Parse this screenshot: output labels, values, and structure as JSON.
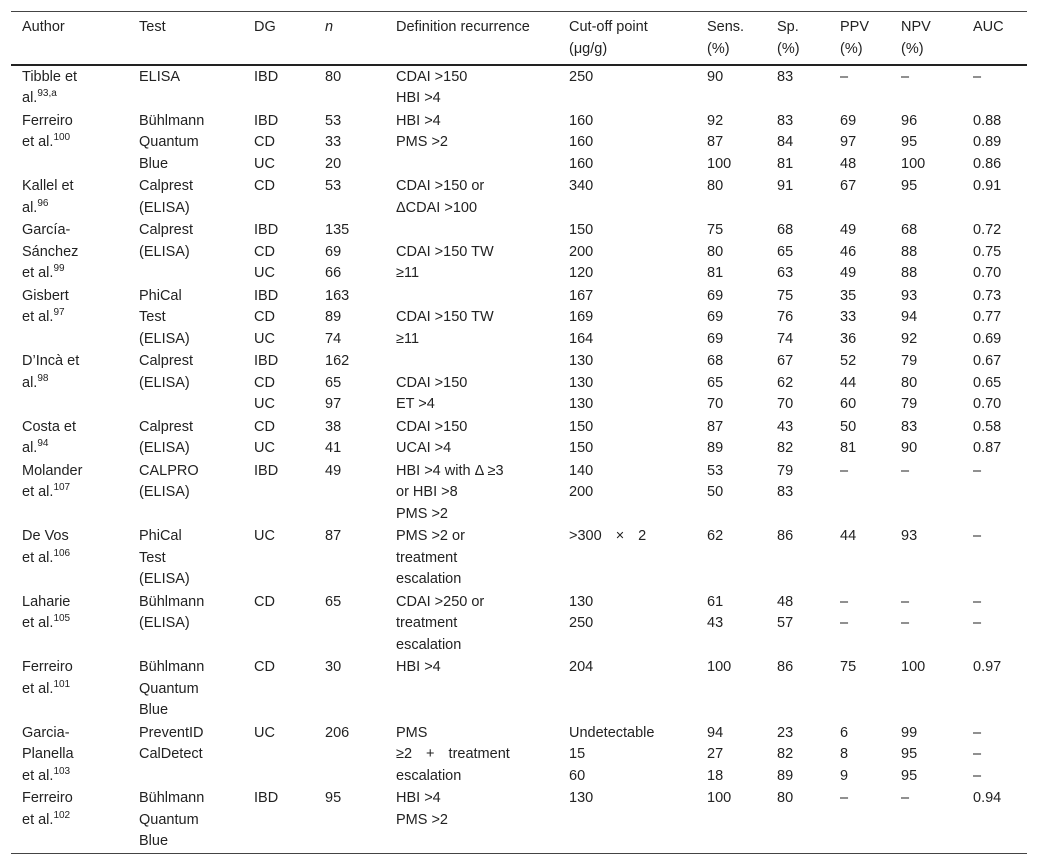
{
  "table": {
    "header": [
      [
        "Author"
      ],
      [
        "Test"
      ],
      [
        "DG"
      ],
      [
        "n"
      ],
      [
        "Definition recurrence"
      ],
      [
        "Cut-off point",
        "(μg/g)"
      ],
      [
        "Sens.",
        "(%)"
      ],
      [
        "Sp.",
        "(%)"
      ],
      [
        "PPV",
        "(%)"
      ],
      [
        "NPV",
        "(%)"
      ],
      [
        "AUC"
      ]
    ],
    "rows": [
      [
        {
          "lines": [
            "Tibble et",
            "al."
          ],
          "ref": "93,a"
        },
        [
          "ELISA"
        ],
        [
          "IBD"
        ],
        [
          "80"
        ],
        [
          "CDAI >150",
          "HBI >4"
        ],
        [
          "250"
        ],
        [
          "90"
        ],
        [
          "83"
        ],
        [
          "–"
        ],
        [
          "–"
        ],
        [
          "–"
        ]
      ],
      [
        {
          "lines": [
            "Ferreiro",
            "et al."
          ],
          "ref": "100"
        },
        [
          "Bühlmann",
          "Quantum",
          "Blue"
        ],
        [
          "IBD",
          "CD",
          "UC"
        ],
        [
          "53",
          "33",
          "20"
        ],
        [
          "HBI >4",
          "PMS >2"
        ],
        [
          "160",
          "160",
          "160"
        ],
        [
          "92",
          "87",
          "100"
        ],
        [
          "83",
          "84",
          "81"
        ],
        [
          "69",
          "97",
          "48"
        ],
        [
          "96",
          "95",
          "100"
        ],
        [
          "0.88",
          "0.89",
          "0.86"
        ]
      ],
      [
        {
          "lines": [
            "Kallel et",
            "al."
          ],
          "ref": "96"
        },
        [
          "Calprest",
          "(ELISA)"
        ],
        [
          "CD"
        ],
        [
          "53"
        ],
        [
          "CDAI >150 or",
          "ΔCDAI >100"
        ],
        [
          "340"
        ],
        [
          "80"
        ],
        [
          "91"
        ],
        [
          "67"
        ],
        [
          "95"
        ],
        [
          "0.91"
        ]
      ],
      [
        {
          "lines": [
            "García-",
            "Sánchez",
            "et al."
          ],
          "ref": "99"
        },
        [
          "Calprest",
          "(ELISA)"
        ],
        [
          "IBD",
          "CD",
          "UC"
        ],
        [
          "135",
          "69",
          "66"
        ],
        [
          null,
          "CDAI >150 TW",
          "≥11"
        ],
        [
          "150",
          "200",
          "120"
        ],
        [
          "75",
          "80",
          "81"
        ],
        [
          "68",
          "65",
          "63"
        ],
        [
          "49",
          "46",
          "49"
        ],
        [
          "68",
          "88",
          "88"
        ],
        [
          "0.72",
          "0.75",
          "0.70"
        ]
      ],
      [
        {
          "lines": [
            "Gisbert",
            "et al."
          ],
          "ref": "97"
        },
        [
          "PhiCal",
          "Test",
          "(ELISA)"
        ],
        [
          "IBD",
          "CD",
          "UC"
        ],
        [
          "163",
          "89",
          "74"
        ],
        [
          null,
          "CDAI >150 TW",
          "≥11"
        ],
        [
          "167",
          "169",
          "164"
        ],
        [
          "69",
          "69",
          "69"
        ],
        [
          "75",
          "76",
          "74"
        ],
        [
          "35",
          "33",
          "36"
        ],
        [
          "93",
          "94",
          "92"
        ],
        [
          "0.73",
          "0.77",
          "0.69"
        ]
      ],
      [
        {
          "lines": [
            "D’Incà et",
            "al."
          ],
          "ref": "98"
        },
        [
          "Calprest",
          "(ELISA)"
        ],
        [
          "IBD",
          "CD",
          "UC"
        ],
        [
          "162",
          "65",
          "97"
        ],
        [
          null,
          "CDAI >150",
          "ET >4"
        ],
        [
          "130",
          "130",
          "130"
        ],
        [
          "68",
          "65",
          "70"
        ],
        [
          "67",
          "62",
          "70"
        ],
        [
          "52",
          "44",
          "60"
        ],
        [
          "79",
          "80",
          "79"
        ],
        [
          "0.67",
          "0.65",
          "0.70"
        ]
      ],
      [
        {
          "lines": [
            "Costa et",
            "al."
          ],
          "ref": "94"
        },
        [
          "Calprest",
          "(ELISA)"
        ],
        [
          "CD",
          "UC"
        ],
        [
          "38",
          "41"
        ],
        [
          "CDAI >150",
          "UCAI >4"
        ],
        [
          "150",
          "150"
        ],
        [
          "87",
          "89"
        ],
        [
          "43",
          "82"
        ],
        [
          "50",
          "81"
        ],
        [
          "83",
          "90"
        ],
        [
          "0.58",
          "0.87"
        ]
      ],
      [
        {
          "lines": [
            "Molander",
            "et al."
          ],
          "ref": "107"
        },
        [
          "CALPRO",
          "(ELISA)"
        ],
        [
          "IBD"
        ],
        [
          "49"
        ],
        [
          "HBI >4 with Δ ≥3",
          "or HBI >8",
          "PMS >2"
        ],
        [
          "140",
          "200"
        ],
        [
          "53",
          "50"
        ],
        [
          "79",
          "83"
        ],
        [
          "–"
        ],
        [
          "–"
        ],
        [
          "–"
        ]
      ],
      [
        {
          "lines": [
            "De Vos",
            "et al."
          ],
          "ref": "106"
        },
        [
          "PhiCal",
          "Test",
          "(ELISA)"
        ],
        [
          "UC"
        ],
        [
          "87"
        ],
        [
          "PMS >2 or",
          "treatment",
          "escalation"
        ],
        [
          ">300 × 2"
        ],
        [
          "62"
        ],
        [
          "86"
        ],
        [
          "44"
        ],
        [
          "93"
        ],
        [
          "–"
        ]
      ],
      [
        {
          "lines": [
            "Laharie",
            "et al."
          ],
          "ref": "105"
        },
        [
          "Bühlmann",
          "(ELISA)"
        ],
        [
          "CD"
        ],
        [
          "65"
        ],
        [
          "CDAI >250 or",
          "treatment",
          "escalation"
        ],
        [
          "130",
          "250"
        ],
        [
          "61",
          "43"
        ],
        [
          "48",
          "57"
        ],
        [
          "–",
          "–"
        ],
        [
          "–",
          "–"
        ],
        [
          "–",
          "–"
        ]
      ],
      [
        {
          "lines": [
            "Ferreiro",
            "et al."
          ],
          "ref": "101"
        },
        [
          "Bühlmann",
          "Quantum",
          "Blue"
        ],
        [
          "CD"
        ],
        [
          "30"
        ],
        [
          "HBI >4"
        ],
        [
          "204"
        ],
        [
          "100"
        ],
        [
          "86"
        ],
        [
          "75"
        ],
        [
          "100"
        ],
        [
          "0.97"
        ]
      ],
      [
        {
          "lines": [
            "Garcia-",
            "Planella",
            "et al."
          ],
          "ref": "103"
        },
        [
          "PreventID",
          "CalDetect"
        ],
        [
          "UC"
        ],
        [
          "206"
        ],
        [
          "PMS",
          "≥2 + treatment",
          "escalation"
        ],
        [
          "Undetectable",
          "15",
          "60"
        ],
        [
          "94",
          "27",
          "18"
        ],
        [
          "23",
          "82",
          "89"
        ],
        [
          "6",
          "8",
          "9"
        ],
        [
          "99",
          "95",
          "95"
        ],
        [
          "–",
          "–",
          "–"
        ]
      ],
      [
        {
          "lines": [
            "Ferreiro",
            "et al."
          ],
          "ref": "102"
        },
        [
          "Bühlmann",
          "Quantum",
          "Blue"
        ],
        [
          "IBD"
        ],
        [
          "95"
        ],
        [
          "HBI >4",
          "PMS >2"
        ],
        [
          "130"
        ],
        [
          "100"
        ],
        [
          "80"
        ],
        [
          "–"
        ],
        [
          "–"
        ],
        [
          "0.94"
        ]
      ]
    ]
  }
}
